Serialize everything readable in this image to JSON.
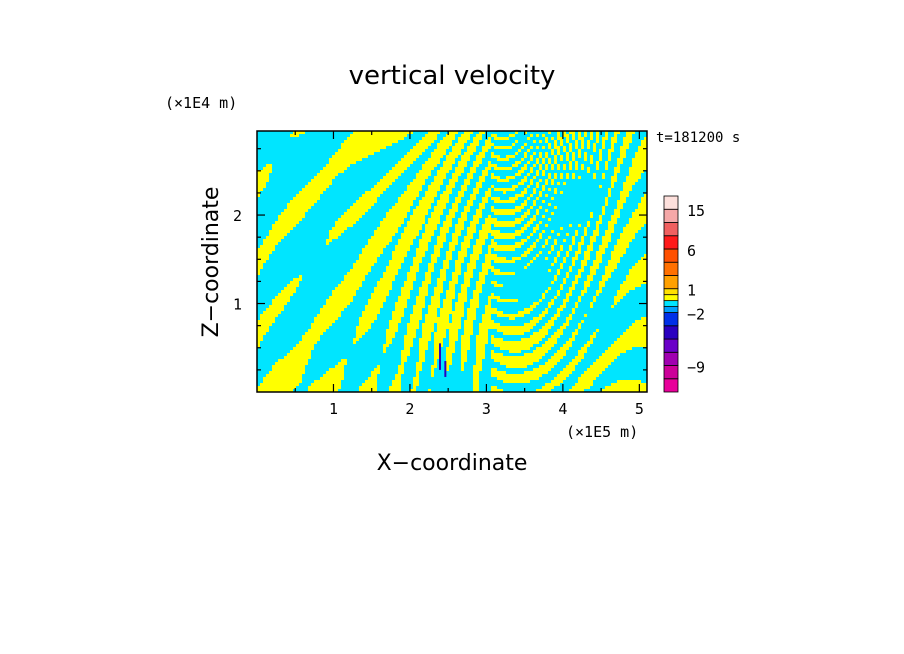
{
  "chart_data": {
    "type": "heatmap",
    "title": "vertical velocity",
    "xlabel": "X−coordinate",
    "ylabel": "Z−coordinate",
    "x_unit": "(×1E5 m)",
    "y_unit": "(×1E4 m)",
    "time_label": "t=181200 s",
    "xlim": [
      0,
      5.1
    ],
    "ylim": [
      0,
      2.95
    ],
    "x_ticks": [
      "1",
      "2",
      "3",
      "4",
      "5"
    ],
    "y_ticks": [
      "1",
      "2"
    ],
    "field_colors": {
      "positive": "#ffff00",
      "negative": "#00e5ff"
    },
    "colorbar": {
      "labels": [
        "15",
        "6",
        "1",
        "−2",
        "−9"
      ],
      "label_values": [
        15,
        6,
        1,
        -2,
        -9
      ],
      "levels": [
        {
          "value": -12,
          "color": "#e8009a"
        },
        {
          "value": -9,
          "color": "#cc0099"
        },
        {
          "value": -7,
          "color": "#a000b0"
        },
        {
          "value": -5,
          "color": "#6a00c8"
        },
        {
          "value": -3,
          "color": "#2a00c0"
        },
        {
          "value": -2,
          "color": "#0030e8"
        },
        {
          "value": -1,
          "color": "#00a0ff"
        },
        {
          "value": 0,
          "color": "#00e5ff"
        },
        {
          "value": 0.5,
          "color": "#ffff00"
        },
        {
          "value": 1,
          "color": "#ffe000"
        },
        {
          "value": 2,
          "color": "#ffa000"
        },
        {
          "value": 4,
          "color": "#ff7000"
        },
        {
          "value": 6,
          "color": "#ff5000"
        },
        {
          "value": 8,
          "color": "#ff1a1a"
        },
        {
          "value": 11,
          "color": "#f06060"
        },
        {
          "value": 15,
          "color": "#f5a8a8"
        },
        {
          "value": 20,
          "color": "#fde0dc"
        }
      ]
    }
  }
}
